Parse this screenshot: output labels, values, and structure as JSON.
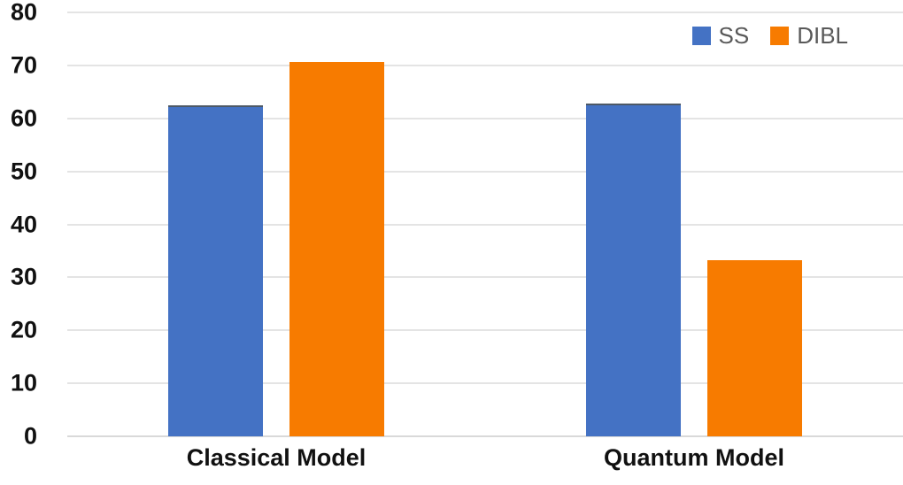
{
  "chart_data": {
    "type": "bar",
    "title": "",
    "xlabel": "",
    "ylabel": "",
    "categories": [
      "Classical Model",
      "Quantum Model"
    ],
    "series": [
      {
        "name": "SS",
        "color": "#4472C4",
        "top_edge_color": "#4D5966",
        "values": [
          62.4,
          62.8
        ]
      },
      {
        "name": "DIBL",
        "color": "#F77B00",
        "values": [
          70.7,
          33.2
        ]
      }
    ],
    "ylim": [
      0,
      80
    ],
    "ytick_step": 10,
    "ytick_labels": [
      "0",
      "10",
      "20",
      "30",
      "40",
      "50",
      "60",
      "70",
      "80"
    ],
    "grid": true,
    "legend_position": "top-right"
  },
  "colors": {
    "background": "#FFFFFF",
    "gridline": "#E4E4E4",
    "baseline": "#D9D9D9",
    "tick_label": "#111111",
    "category_label": "#111111",
    "legend_text": "#595959"
  }
}
